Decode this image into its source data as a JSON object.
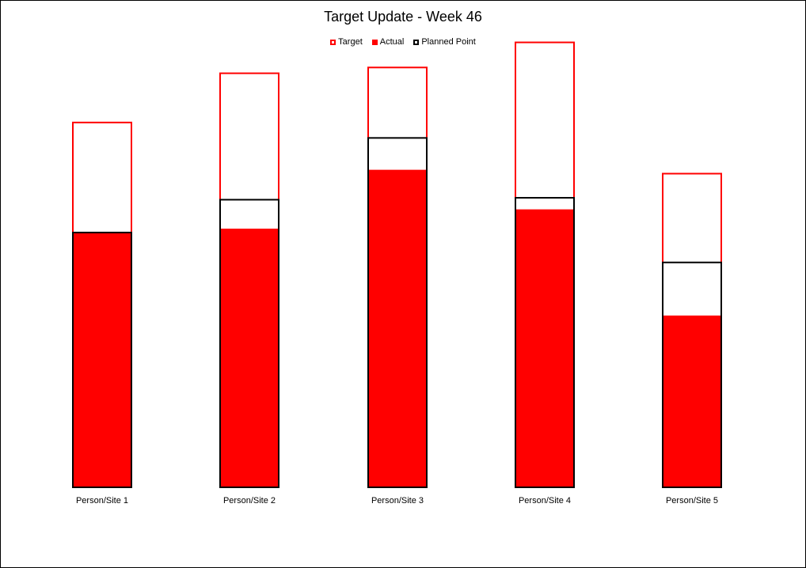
{
  "chart_data": {
    "type": "bar",
    "title": "Target Update - Week 46",
    "legend": {
      "position": "top-center",
      "entries": [
        "Target",
        "Actual",
        "Planned Point"
      ]
    },
    "categories": [
      "Person/Site 1",
      "Person/Site 2",
      "Person/Site 3",
      "Person/Site 4",
      "Person/Site 5"
    ],
    "series": [
      {
        "name": "Target",
        "values": [
          378,
          429,
          435,
          461,
          325
        ]
      },
      {
        "name": "Actual",
        "values": [
          264,
          268,
          329,
          288,
          178
        ]
      },
      {
        "name": "Planned Point",
        "values": [
          264,
          298,
          362,
          300,
          233
        ]
      }
    ],
    "ylim": [
      0,
      500
    ],
    "grid": false,
    "colors": {
      "target": "#ff0000",
      "actual": "#ff0000",
      "planned": "#000000"
    }
  }
}
